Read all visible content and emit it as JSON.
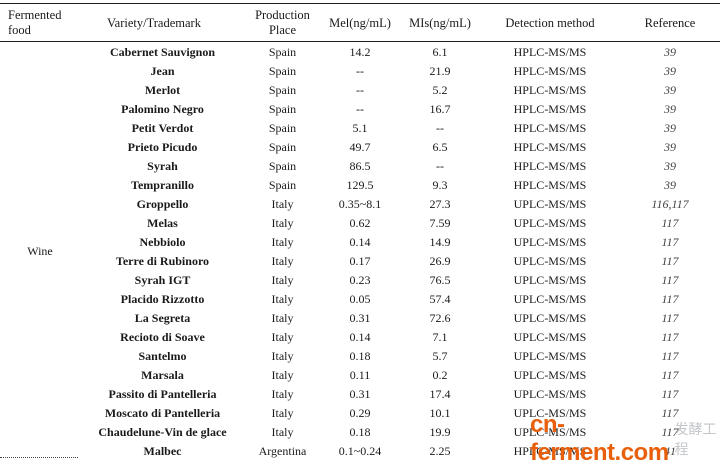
{
  "header": {
    "food": "Fermented food",
    "variety": "Variety/Trademark",
    "place": "Production Place",
    "mel": "Mel(ng/mL)",
    "mis": "MIs(ng/mL)",
    "method": "Detection method",
    "reference": "Reference"
  },
  "food_group": "Wine",
  "rows": [
    {
      "variety": "Cabernet Sauvignon",
      "place": "Spain",
      "mel": "14.2",
      "mis": "6.1",
      "method": "HPLC-MS/MS",
      "ref": "39"
    },
    {
      "variety": "Jean",
      "place": "Spain",
      "mel": "--",
      "mis": "21.9",
      "method": "HPLC-MS/MS",
      "ref": "39"
    },
    {
      "variety": "Merlot",
      "place": "Spain",
      "mel": "--",
      "mis": "5.2",
      "method": "HPLC-MS/MS",
      "ref": "39"
    },
    {
      "variety": "Palomino Negro",
      "place": "Spain",
      "mel": "--",
      "mis": "16.7",
      "method": "HPLC-MS/MS",
      "ref": "39"
    },
    {
      "variety": "Petit Verdot",
      "place": "Spain",
      "mel": "5.1",
      "mis": "--",
      "method": "HPLC-MS/MS",
      "ref": "39"
    },
    {
      "variety": "Prieto Picudo",
      "place": "Spain",
      "mel": "49.7",
      "mis": "6.5",
      "method": "HPLC-MS/MS",
      "ref": "39"
    },
    {
      "variety": "Syrah",
      "place": "Spain",
      "mel": "86.5",
      "mis": "--",
      "method": "HPLC-MS/MS",
      "ref": "39"
    },
    {
      "variety": "Tempranillo",
      "place": "Spain",
      "mel": "129.5",
      "mis": "9.3",
      "method": "HPLC-MS/MS",
      "ref": "39"
    },
    {
      "variety": "Groppello",
      "place": "Italy",
      "mel": "0.35~8.1",
      "mis": "27.3",
      "method": "UPLC-MS/MS",
      "ref": "116,117"
    },
    {
      "variety": "Melas",
      "place": "Italy",
      "mel": "0.62",
      "mis": "7.59",
      "method": "UPLC-MS/MS",
      "ref": "117"
    },
    {
      "variety": "Nebbiolo",
      "place": "Italy",
      "mel": "0.14",
      "mis": "14.9",
      "method": "UPLC-MS/MS",
      "ref": "117"
    },
    {
      "variety": "Terre di Rubinoro",
      "place": "Italy",
      "mel": "0.17",
      "mis": "26.9",
      "method": "UPLC-MS/MS",
      "ref": "117"
    },
    {
      "variety": "Syrah IGT",
      "place": "Italy",
      "mel": "0.23",
      "mis": "76.5",
      "method": "UPLC-MS/MS",
      "ref": "117"
    },
    {
      "variety": "Placido Rizzotto",
      "place": "Italy",
      "mel": "0.05",
      "mis": "57.4",
      "method": "UPLC-MS/MS",
      "ref": "117"
    },
    {
      "variety": "La Segreta",
      "place": "Italy",
      "mel": "0.31",
      "mis": "72.6",
      "method": "UPLC-MS/MS",
      "ref": "117"
    },
    {
      "variety": "Recioto di Soave",
      "place": "Italy",
      "mel": "0.14",
      "mis": "7.1",
      "method": "UPLC-MS/MS",
      "ref": "117"
    },
    {
      "variety": "Santelmo",
      "place": "Italy",
      "mel": "0.18",
      "mis": "5.7",
      "method": "UPLC-MS/MS",
      "ref": "117"
    },
    {
      "variety": "Marsala",
      "place": "Italy",
      "mel": "0.11",
      "mis": "0.2",
      "method": "UPLC-MS/MS",
      "ref": "117"
    },
    {
      "variety": "Passito di Pantelleria",
      "place": "Italy",
      "mel": "0.31",
      "mis": "17.4",
      "method": "UPLC-MS/MS",
      "ref": "117"
    },
    {
      "variety": "Moscato di Pantelleria",
      "place": "Italy",
      "mel": "0.29",
      "mis": "10.1",
      "method": "UPLC-MS/MS",
      "ref": "117"
    },
    {
      "variety": "Chaudelune-Vin de glace",
      "place": "Italy",
      "mel": "0.18",
      "mis": "19.9",
      "method": "UPLC-MS/MS",
      "ref": "117"
    },
    {
      "variety": "Malbec",
      "place": "Argentina",
      "mel": "0.1~0.24",
      "mis": "2.25",
      "method": "HPLC-MS/MS",
      "ref": "41"
    }
  ],
  "watermark": {
    "logo": "cn-ferment.com",
    "sub": "发酵工程"
  }
}
